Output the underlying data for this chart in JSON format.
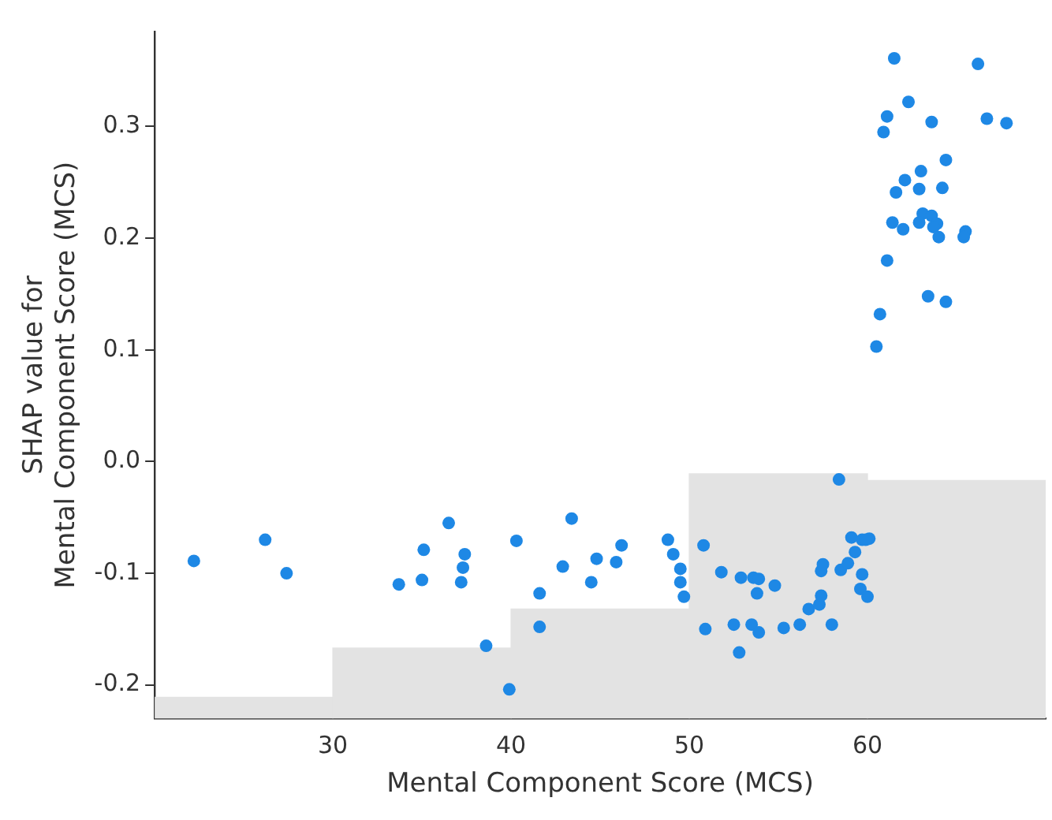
{
  "chart_data": {
    "type": "scatter",
    "xlabel": "Mental Component Score (MCS)",
    "ylabel": "SHAP value for\nMental Component Score (MCS)",
    "xlim": [
      20,
      70
    ],
    "xticks": [
      30,
      40,
      50,
      60
    ],
    "ylim": [
      -0.23,
      0.385
    ],
    "yticks": [
      -0.2,
      -0.1,
      {
        "value": 0,
        "label": "0.0"
      },
      0.1,
      0.2,
      0.3
    ],
    "grid": false,
    "legend": false,
    "marker": "circle",
    "series": [
      {
        "type": "bar",
        "color": "#e3e3e3",
        "x": [
          25,
          35,
          45,
          55,
          65
        ],
        "base": [
          -0.23,
          -0.23,
          -0.23,
          -0.23,
          -0.23
        ],
        "values": [
          0.019,
          0.063,
          0.098,
          0.219,
          0.213
        ]
      },
      {
        "color": "#1e88e5",
        "x": [
          61.5,
          66.2,
          62.3,
          61.1,
          63.6,
          66.7,
          67.8,
          60.9,
          64.4,
          63.0,
          62.1,
          61.6,
          62.9,
          64.2,
          61.4,
          62.0,
          63.1,
          63.6,
          62.9,
          63.9,
          63.7,
          64.0,
          65.5,
          65.4,
          61.1,
          63.4,
          64.4,
          60.7,
          60.5,
          22.2,
          26.2,
          27.4,
          33.7,
          35.0,
          35.1,
          36.5,
          37.4,
          37.3,
          37.2,
          38.6,
          39.9,
          40.3,
          41.6,
          41.6,
          42.9,
          43.4,
          44.5,
          44.8,
          45.9,
          46.2,
          48.8,
          49.1,
          49.5,
          49.5,
          49.7,
          50.8,
          50.9,
          51.8,
          52.5,
          52.8,
          52.9,
          53.5,
          53.6,
          53.9,
          53.8,
          53.9,
          54.8,
          55.3,
          56.2,
          56.7,
          57.3,
          57.4,
          57.4,
          57.5,
          58.0,
          58.4,
          58.5,
          58.9,
          59.3,
          59.1,
          59.7,
          60.1,
          59.9,
          59.7,
          59.6,
          60.0
        ],
        "values": [
          0.361,
          0.356,
          0.322,
          0.309,
          0.304,
          0.307,
          0.303,
          0.295,
          0.27,
          0.26,
          0.252,
          0.241,
          0.244,
          0.245,
          0.214,
          0.208,
          0.222,
          0.22,
          0.214,
          0.213,
          0.21,
          0.201,
          0.206,
          0.201,
          0.18,
          0.148,
          0.143,
          0.132,
          0.103,
          -0.089,
          -0.07,
          -0.1,
          -0.11,
          -0.106,
          -0.079,
          -0.055,
          -0.083,
          -0.095,
          -0.108,
          -0.165,
          -0.204,
          -0.071,
          -0.118,
          -0.148,
          -0.094,
          -0.051,
          -0.108,
          -0.087,
          -0.09,
          -0.075,
          -0.07,
          -0.083,
          -0.096,
          -0.108,
          -0.121,
          -0.075,
          -0.15,
          -0.099,
          -0.146,
          -0.171,
          -0.104,
          -0.146,
          -0.104,
          -0.105,
          -0.118,
          -0.153,
          -0.111,
          -0.149,
          -0.146,
          -0.132,
          -0.128,
          -0.12,
          -0.098,
          -0.092,
          -0.146,
          -0.016,
          -0.097,
          -0.091,
          -0.081,
          -0.068,
          -0.07,
          -0.069,
          -0.07,
          -0.101,
          -0.114,
          -0.121
        ]
      }
    ]
  }
}
